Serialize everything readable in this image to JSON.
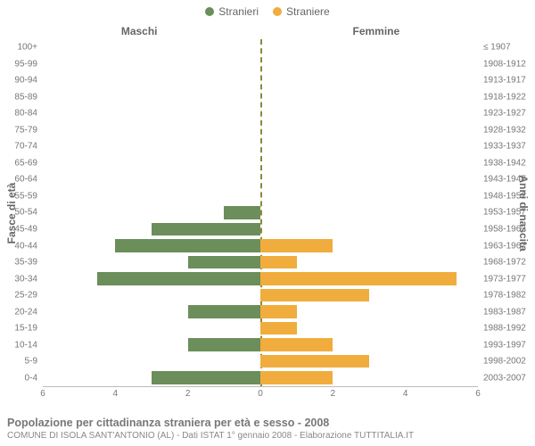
{
  "legend": {
    "male_label": "Stranieri",
    "female_label": "Straniere"
  },
  "headers": {
    "left": "Maschi",
    "right": "Femmine",
    "left_axis": "Fasce di età",
    "right_axis": "Anni di nascita"
  },
  "chart": {
    "type": "population-pyramid",
    "max_value": 6,
    "x_ticks": [
      6,
      4,
      2,
      0,
      2,
      4,
      6
    ],
    "male_color": "#6b8e5a",
    "female_color": "#f0ad3d",
    "background_color": "#ffffff",
    "axis_color": "#bbbbbb",
    "center_dash_color": "#8a8a3a",
    "tick_font_color": "#777777",
    "label_fontsize": 10,
    "rows": [
      {
        "age": "100+",
        "birth": "≤ 1907",
        "m": 0,
        "f": 0
      },
      {
        "age": "95-99",
        "birth": "1908-1912",
        "m": 0,
        "f": 0
      },
      {
        "age": "90-94",
        "birth": "1913-1917",
        "m": 0,
        "f": 0
      },
      {
        "age": "85-89",
        "birth": "1918-1922",
        "m": 0,
        "f": 0
      },
      {
        "age": "80-84",
        "birth": "1923-1927",
        "m": 0,
        "f": 0
      },
      {
        "age": "75-79",
        "birth": "1928-1932",
        "m": 0,
        "f": 0
      },
      {
        "age": "70-74",
        "birth": "1933-1937",
        "m": 0,
        "f": 0
      },
      {
        "age": "65-69",
        "birth": "1938-1942",
        "m": 0,
        "f": 0
      },
      {
        "age": "60-64",
        "birth": "1943-1947",
        "m": 0,
        "f": 0
      },
      {
        "age": "55-59",
        "birth": "1948-1952",
        "m": 0,
        "f": 0
      },
      {
        "age": "50-54",
        "birth": "1953-1957",
        "m": 1,
        "f": 0
      },
      {
        "age": "45-49",
        "birth": "1958-1962",
        "m": 3,
        "f": 0
      },
      {
        "age": "40-44",
        "birth": "1963-1967",
        "m": 4,
        "f": 2
      },
      {
        "age": "35-39",
        "birth": "1968-1972",
        "m": 2,
        "f": 1
      },
      {
        "age": "30-34",
        "birth": "1973-1977",
        "m": 4.5,
        "f": 5.4
      },
      {
        "age": "25-29",
        "birth": "1978-1982",
        "m": 0,
        "f": 3
      },
      {
        "age": "20-24",
        "birth": "1983-1987",
        "m": 2,
        "f": 1
      },
      {
        "age": "15-19",
        "birth": "1988-1992",
        "m": 0,
        "f": 1
      },
      {
        "age": "10-14",
        "birth": "1993-1997",
        "m": 2,
        "f": 2
      },
      {
        "age": "5-9",
        "birth": "1998-2002",
        "m": 0,
        "f": 3
      },
      {
        "age": "0-4",
        "birth": "2003-2007",
        "m": 3,
        "f": 2
      }
    ]
  },
  "footer": {
    "title": "Popolazione per cittadinanza straniera per età e sesso - 2008",
    "subtitle": "COMUNE DI ISOLA SANT'ANTONIO (AL) - Dati ISTAT 1° gennaio 2008 - Elaborazione TUTTITALIA.IT"
  }
}
